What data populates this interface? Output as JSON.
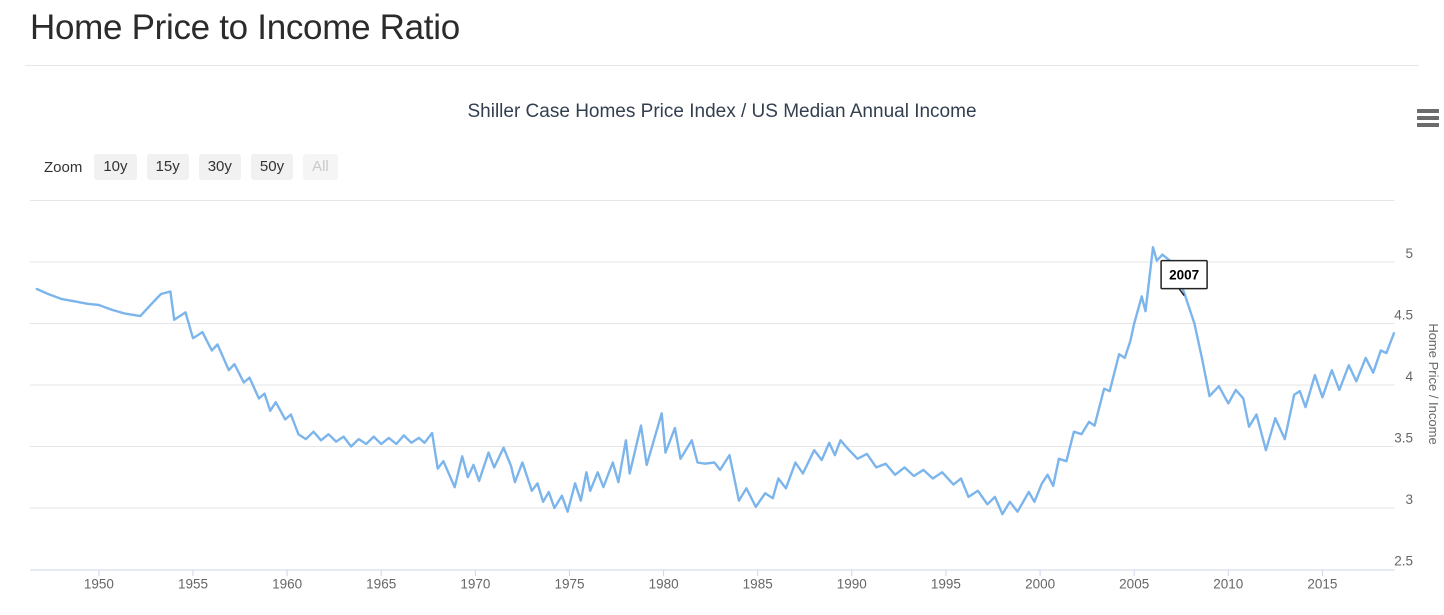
{
  "page": {
    "title": "Home Price to Income Ratio"
  },
  "chart": {
    "title": "Shiller Case Homes Price Index / US Median Annual Income",
    "menu_icon": "hamburger-menu-icon"
  },
  "range_selector": {
    "label": "Zoom",
    "buttons": [
      {
        "label": "10y",
        "enabled": true
      },
      {
        "label": "15y",
        "enabled": true
      },
      {
        "label": "30y",
        "enabled": true
      },
      {
        "label": "50y",
        "enabled": true
      },
      {
        "label": "All",
        "enabled": false
      }
    ]
  },
  "colors": {
    "line": "#7cb5ec",
    "grid": "#e6e6e6",
    "axis": "#ccd6eb",
    "label": "#666666",
    "chart_title": "#333f4f",
    "page_title": "#2b2b2b",
    "annotation_border": "#222222",
    "button_bg": "#f1f1f1",
    "button_text": "#333333",
    "button_disabled_text": "#c9c9c9"
  },
  "chart_data": {
    "type": "line",
    "title": "Shiller Case Homes Price Index / US Median Annual Income",
    "xlabel": "",
    "ylabel": "Home Price / Income",
    "legend": "none",
    "grid": true,
    "xlim": [
      1946.34,
      2018.83
    ],
    "ylim": [
      2.5,
      5.52
    ],
    "x_ticks": [
      1950,
      1955,
      1960,
      1965,
      1970,
      1975,
      1980,
      1985,
      1990,
      1995,
      2000,
      2005,
      2010,
      2015
    ],
    "y_ticks": [
      2.5,
      3,
      3.5,
      4,
      4.5,
      5
    ],
    "extra_gridlines": [
      5.5
    ],
    "line_color": "#7cb5ec",
    "annotation": {
      "text": "2007",
      "target_year": 2007.65,
      "target_value": 4.71
    },
    "series": [
      {
        "name": "Home Price / Income",
        "points": [
          [
            1946.7,
            4.78
          ],
          [
            1947.3,
            4.74
          ],
          [
            1948.0,
            4.7
          ],
          [
            1948.7,
            4.68
          ],
          [
            1949.4,
            4.66
          ],
          [
            1950.0,
            4.65
          ],
          [
            1950.7,
            4.61
          ],
          [
            1951.4,
            4.58
          ],
          [
            1952.2,
            4.56
          ],
          [
            1952.8,
            4.66
          ],
          [
            1953.3,
            4.74
          ],
          [
            1953.8,
            4.76
          ],
          [
            1954.0,
            4.53
          ],
          [
            1954.6,
            4.59
          ],
          [
            1955.0,
            4.38
          ],
          [
            1955.5,
            4.43
          ],
          [
            1956.0,
            4.28
          ],
          [
            1956.3,
            4.33
          ],
          [
            1956.9,
            4.12
          ],
          [
            1957.2,
            4.17
          ],
          [
            1957.7,
            4.02
          ],
          [
            1958.0,
            4.06
          ],
          [
            1958.5,
            3.89
          ],
          [
            1958.8,
            3.93
          ],
          [
            1959.1,
            3.79
          ],
          [
            1959.4,
            3.86
          ],
          [
            1959.9,
            3.72
          ],
          [
            1960.2,
            3.76
          ],
          [
            1960.6,
            3.6
          ],
          [
            1961.0,
            3.56
          ],
          [
            1961.4,
            3.62
          ],
          [
            1961.8,
            3.55
          ],
          [
            1962.2,
            3.6
          ],
          [
            1962.6,
            3.54
          ],
          [
            1963.0,
            3.58
          ],
          [
            1963.4,
            3.5
          ],
          [
            1963.8,
            3.56
          ],
          [
            1964.2,
            3.52
          ],
          [
            1964.6,
            3.58
          ],
          [
            1965.0,
            3.52
          ],
          [
            1965.4,
            3.57
          ],
          [
            1965.8,
            3.52
          ],
          [
            1966.2,
            3.59
          ],
          [
            1966.6,
            3.53
          ],
          [
            1967.0,
            3.57
          ],
          [
            1967.3,
            3.53
          ],
          [
            1967.7,
            3.61
          ],
          [
            1968.0,
            3.32
          ],
          [
            1968.3,
            3.38
          ],
          [
            1968.9,
            3.17
          ],
          [
            1969.3,
            3.42
          ],
          [
            1969.6,
            3.25
          ],
          [
            1969.9,
            3.35
          ],
          [
            1970.2,
            3.22
          ],
          [
            1970.7,
            3.45
          ],
          [
            1971.0,
            3.33
          ],
          [
            1971.5,
            3.49
          ],
          [
            1971.9,
            3.34
          ],
          [
            1972.1,
            3.21
          ],
          [
            1972.5,
            3.37
          ],
          [
            1973.0,
            3.14
          ],
          [
            1973.3,
            3.2
          ],
          [
            1973.6,
            3.05
          ],
          [
            1973.9,
            3.13
          ],
          [
            1974.2,
            3.0
          ],
          [
            1974.6,
            3.1
          ],
          [
            1974.9,
            2.97
          ],
          [
            1975.3,
            3.2
          ],
          [
            1975.6,
            3.06
          ],
          [
            1975.9,
            3.29
          ],
          [
            1976.1,
            3.14
          ],
          [
            1976.5,
            3.29
          ],
          [
            1976.8,
            3.17
          ],
          [
            1977.3,
            3.37
          ],
          [
            1977.6,
            3.21
          ],
          [
            1978.0,
            3.55
          ],
          [
            1978.2,
            3.28
          ],
          [
            1978.8,
            3.67
          ],
          [
            1979.1,
            3.35
          ],
          [
            1979.9,
            3.77
          ],
          [
            1980.1,
            3.45
          ],
          [
            1980.6,
            3.65
          ],
          [
            1980.9,
            3.4
          ],
          [
            1981.5,
            3.55
          ],
          [
            1981.8,
            3.37
          ],
          [
            1982.2,
            3.36
          ],
          [
            1982.7,
            3.37
          ],
          [
            1983.0,
            3.31
          ],
          [
            1983.5,
            3.43
          ],
          [
            1984.0,
            3.06
          ],
          [
            1984.4,
            3.16
          ],
          [
            1984.9,
            3.01
          ],
          [
            1985.4,
            3.12
          ],
          [
            1985.8,
            3.08
          ],
          [
            1986.1,
            3.24
          ],
          [
            1986.5,
            3.16
          ],
          [
            1987.0,
            3.37
          ],
          [
            1987.4,
            3.28
          ],
          [
            1988.0,
            3.47
          ],
          [
            1988.4,
            3.39
          ],
          [
            1988.8,
            3.53
          ],
          [
            1989.1,
            3.43
          ],
          [
            1989.4,
            3.55
          ],
          [
            1989.8,
            3.48
          ],
          [
            1990.3,
            3.4
          ],
          [
            1990.8,
            3.44
          ],
          [
            1991.3,
            3.33
          ],
          [
            1991.8,
            3.36
          ],
          [
            1992.3,
            3.27
          ],
          [
            1992.8,
            3.33
          ],
          [
            1993.3,
            3.26
          ],
          [
            1993.8,
            3.31
          ],
          [
            1994.3,
            3.24
          ],
          [
            1994.8,
            3.29
          ],
          [
            1995.4,
            3.19
          ],
          [
            1995.8,
            3.24
          ],
          [
            1996.2,
            3.09
          ],
          [
            1996.7,
            3.14
          ],
          [
            1997.2,
            3.03
          ],
          [
            1997.6,
            3.09
          ],
          [
            1998.0,
            2.95
          ],
          [
            1998.4,
            3.05
          ],
          [
            1998.8,
            2.97
          ],
          [
            1999.4,
            3.13
          ],
          [
            1999.7,
            3.05
          ],
          [
            2000.1,
            3.2
          ],
          [
            2000.4,
            3.27
          ],
          [
            2000.7,
            3.18
          ],
          [
            2001.0,
            3.4
          ],
          [
            2001.4,
            3.38
          ],
          [
            2001.8,
            3.62
          ],
          [
            2002.2,
            3.6
          ],
          [
            2002.6,
            3.7
          ],
          [
            2002.9,
            3.67
          ],
          [
            2003.4,
            3.97
          ],
          [
            2003.7,
            3.95
          ],
          [
            2004.2,
            4.25
          ],
          [
            2004.5,
            4.22
          ],
          [
            2004.8,
            4.36
          ],
          [
            2005.0,
            4.5
          ],
          [
            2005.4,
            4.72
          ],
          [
            2005.6,
            4.6
          ],
          [
            2006.0,
            5.12
          ],
          [
            2006.2,
            5.01
          ],
          [
            2006.5,
            5.06
          ],
          [
            2006.9,
            5.01
          ],
          [
            2007.3,
            4.9
          ],
          [
            2007.7,
            4.73
          ],
          [
            2008.2,
            4.5
          ],
          [
            2008.6,
            4.22
          ],
          [
            2009.0,
            3.91
          ],
          [
            2009.5,
            3.99
          ],
          [
            2010.0,
            3.85
          ],
          [
            2010.4,
            3.96
          ],
          [
            2010.8,
            3.89
          ],
          [
            2011.1,
            3.66
          ],
          [
            2011.5,
            3.76
          ],
          [
            2012.0,
            3.47
          ],
          [
            2012.5,
            3.73
          ],
          [
            2013.0,
            3.56
          ],
          [
            2013.5,
            3.92
          ],
          [
            2013.8,
            3.95
          ],
          [
            2014.1,
            3.82
          ],
          [
            2014.6,
            4.08
          ],
          [
            2015.0,
            3.9
          ],
          [
            2015.5,
            4.12
          ],
          [
            2015.9,
            3.96
          ],
          [
            2016.4,
            4.16
          ],
          [
            2016.8,
            4.03
          ],
          [
            2017.3,
            4.22
          ],
          [
            2017.7,
            4.1
          ],
          [
            2018.1,
            4.28
          ],
          [
            2018.4,
            4.26
          ],
          [
            2018.8,
            4.42
          ]
        ]
      }
    ]
  }
}
